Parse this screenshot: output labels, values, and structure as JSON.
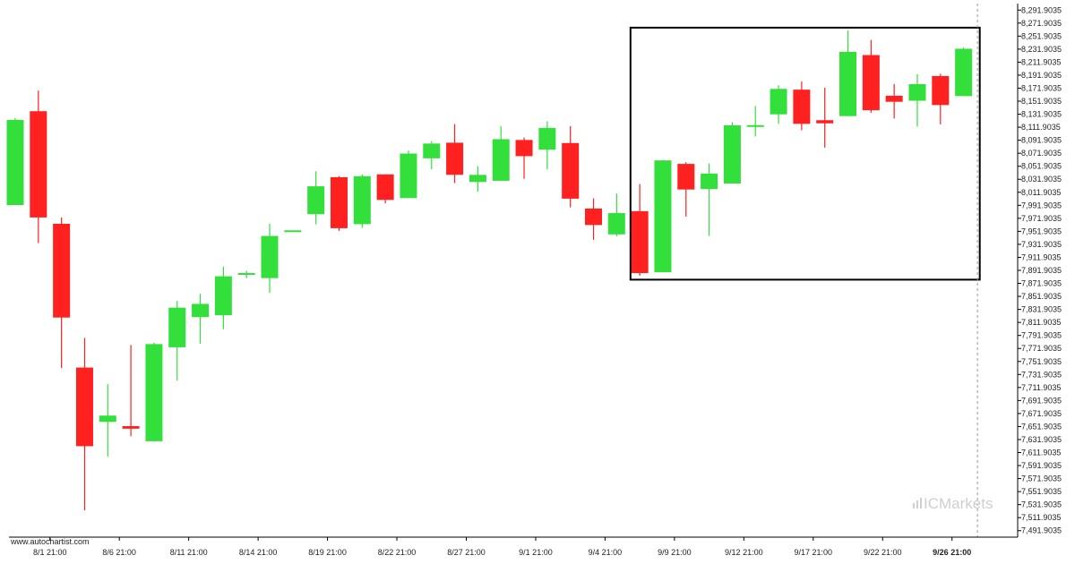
{
  "source_label": "www.autochartist.com",
  "watermark": {
    "prefix": "IC",
    "suffix": "Markets"
  },
  "colors": {
    "up": "#33e03b",
    "down": "#ff2020",
    "axis": "#000000",
    "pattern_box": "#000000",
    "cursor_line": "#999999"
  },
  "chart_data": {
    "type": "candlestick",
    "title": "",
    "xlabel": "",
    "ylabel": "",
    "ylim": [
      7481.9035,
      8301.9035
    ],
    "y_ticks": [
      "8,291.9035",
      "8,271.9035",
      "8,251.9035",
      "8,231.9035",
      "8,211.9035",
      "8,191.9035",
      "8,171.9035",
      "8,151.9035",
      "8,131.9035",
      "8,111.9035",
      "8,091.9035",
      "8,071.9035",
      "8,051.9035",
      "8,031.9035",
      "8,011.9035",
      "7,991.9035",
      "7,971.9035",
      "7,951.9035",
      "7,931.9035",
      "7,911.9035",
      "7,891.9035",
      "7,871.9035",
      "7,851.9035",
      "7,831.9035",
      "7,811.9035",
      "7,791.9035",
      "7,771.9035",
      "7,751.9035",
      "7,731.9035",
      "7,711.9035",
      "7,691.9035",
      "7,671.9035",
      "7,651.9035",
      "7,631.9035",
      "7,611.9035",
      "7,591.9035",
      "7,571.9035",
      "7,551.9035",
      "7,531.9035",
      "7,511.9035",
      "7,491.9035"
    ],
    "x_ticks": [
      {
        "label": "8/1 21:00",
        "index": 1.5
      },
      {
        "label": "8/6 21:00",
        "index": 4.5
      },
      {
        "label": "8/11 21:00",
        "index": 7.5
      },
      {
        "label": "8/14 21:00",
        "index": 10.5
      },
      {
        "label": "8/19 21:00",
        "index": 13.5
      },
      {
        "label": "8/22 21:00",
        "index": 16.5
      },
      {
        "label": "8/27 21:00",
        "index": 19.5
      },
      {
        "label": "9/1 21:00",
        "index": 22.5
      },
      {
        "label": "9/4 21:00",
        "index": 25.5
      },
      {
        "label": "9/9 21:00",
        "index": 28.5
      },
      {
        "label": "9/12 21:00",
        "index": 31.5
      },
      {
        "label": "9/17 21:00",
        "index": 34.5
      },
      {
        "label": "9/22 21:00",
        "index": 37.5
      },
      {
        "label": "9/26 21:00",
        "index": 40.5,
        "bold": true
      }
    ],
    "candles": [
      {
        "o": 7992.3,
        "h": 8126.1,
        "l": 7992.3,
        "c": 8123.1
      },
      {
        "o": 8136.5,
        "h": 8168.1,
        "l": 7933.8,
        "c": 7973.2
      },
      {
        "o": 7963.5,
        "h": 7973.2,
        "l": 7741.8,
        "c": 7819.4
      },
      {
        "o": 7742.5,
        "h": 7788.0,
        "l": 7523.1,
        "c": 7621.7
      },
      {
        "o": 7659.1,
        "h": 7717.1,
        "l": 7605.5,
        "c": 7668.7
      },
      {
        "o": 7652.5,
        "h": 7777.2,
        "l": 7637.0,
        "c": 7648.6
      },
      {
        "o": 7629.3,
        "h": 7780.9,
        "l": 7629.3,
        "c": 7778.6
      },
      {
        "o": 7773.7,
        "h": 7844.9,
        "l": 7722.6,
        "c": 7834.6
      },
      {
        "o": 7820.1,
        "h": 7855.9,
        "l": 7779.2,
        "c": 7840.4
      },
      {
        "o": 7822.9,
        "h": 7897.5,
        "l": 7801.6,
        "c": 7882.8
      },
      {
        "o": 7885.6,
        "h": 7891.1,
        "l": 7880.0,
        "c": 7887.8
      },
      {
        "o": 7880.0,
        "h": 7963.5,
        "l": 7857.4,
        "c": 7944.8
      },
      {
        "o": 7953.4,
        "h": 7953.4,
        "l": 7953.4,
        "c": 7953.4
      },
      {
        "o": 7978.3,
        "h": 8044.2,
        "l": 7962.6,
        "c": 8021.1
      },
      {
        "o": 8035.1,
        "h": 8036.8,
        "l": 7952.5,
        "c": 7956.7
      },
      {
        "o": 7962.9,
        "h": 8039.4,
        "l": 7957.1,
        "c": 8036.6
      },
      {
        "o": 8039.4,
        "h": 8039.4,
        "l": 7994.9,
        "c": 8000.2
      },
      {
        "o": 8003.0,
        "h": 8076.0,
        "l": 8003.0,
        "c": 8071.4
      },
      {
        "o": 8064.1,
        "h": 8090.4,
        "l": 8047.3,
        "c": 8086.8
      },
      {
        "o": 8088.1,
        "h": 8116.6,
        "l": 8026.0,
        "c": 8038.8
      },
      {
        "o": 8027.8,
        "h": 8052.2,
        "l": 8013.0,
        "c": 8038.7
      },
      {
        "o": 8029.6,
        "h": 8113.3,
        "l": 8029.6,
        "c": 8093.5
      },
      {
        "o": 8092.3,
        "h": 8096.1,
        "l": 8032.6,
        "c": 8067.4
      },
      {
        "o": 8077.4,
        "h": 8121.1,
        "l": 8047.2,
        "c": 8110.8
      },
      {
        "o": 8087.6,
        "h": 8113.5,
        "l": 7988.7,
        "c": 8002.1
      },
      {
        "o": 7986.9,
        "h": 8002.6,
        "l": 7938.8,
        "c": 7961.6
      },
      {
        "o": 7947.2,
        "h": 8009.9,
        "l": 7944.1,
        "c": 7979.9
      },
      {
        "o": 7982.9,
        "h": 8024.5,
        "l": 7883.7,
        "c": 7887.7
      },
      {
        "o": 7889.0,
        "h": 8061.3,
        "l": 7889.0,
        "c": 8060.9
      },
      {
        "o": 8055.5,
        "h": 8058.1,
        "l": 7974.5,
        "c": 8016.2
      },
      {
        "o": 8016.9,
        "h": 8056.0,
        "l": 7944.9,
        "c": 8040.6
      },
      {
        "o": 8025.4,
        "h": 8119.5,
        "l": 8025.4,
        "c": 8114.8
      },
      {
        "o": 8115.1,
        "h": 8144.4,
        "l": 8097.7,
        "c": 8115.1
      },
      {
        "o": 8131.7,
        "h": 8176.3,
        "l": 8117.1,
        "c": 8170.8
      },
      {
        "o": 8169.6,
        "h": 8182.1,
        "l": 8107.3,
        "c": 8117.1
      },
      {
        "o": 8122.7,
        "h": 8172.7,
        "l": 8080.5,
        "c": 8117.9
      },
      {
        "o": 8129.0,
        "h": 8260.6,
        "l": 8129.0,
        "c": 8227.8
      },
      {
        "o": 8222.8,
        "h": 8245.9,
        "l": 8134.1,
        "c": 8138.0
      },
      {
        "o": 8160.2,
        "h": 8178.4,
        "l": 8125.3,
        "c": 8151.0
      },
      {
        "o": 8152.6,
        "h": 8193.6,
        "l": 8113.0,
        "c": 8178.1
      },
      {
        "o": 8190.5,
        "h": 8194.0,
        "l": 8116.3,
        "c": 8146.0
      },
      {
        "o": 8159.7,
        "h": 8234.7,
        "l": 8159.7,
        "c": 8232.5
      }
    ],
    "pattern_box": {
      "start_index": 26.6,
      "end_index": 41.7,
      "top": 8264.9,
      "bottom": 7877.6
    },
    "cursor_index": 41.6,
    "grid": false,
    "legend": "none"
  }
}
